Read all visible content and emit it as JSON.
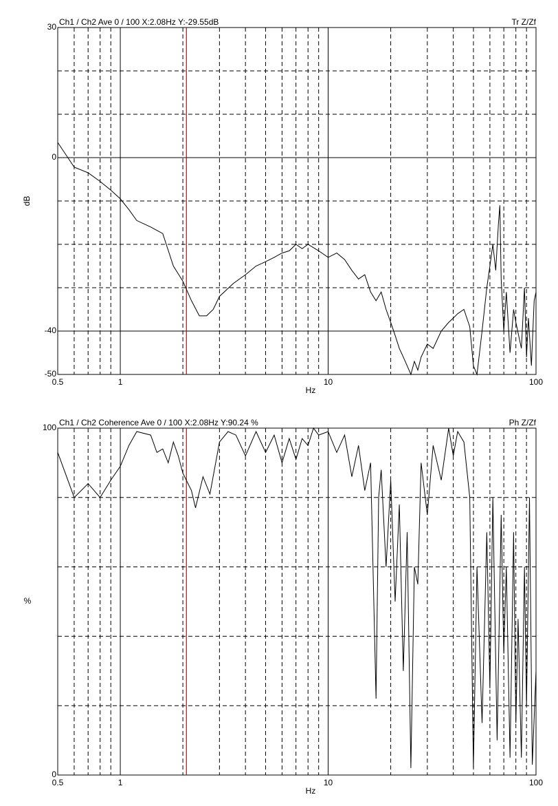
{
  "chart_data": [
    {
      "type": "line",
      "title": "Ch1 / Ch2  Ave 0 / 100  X:2.08Hz  Y:-29.55dB",
      "title_right": "Tr Z/Zf",
      "ylabel": "dB",
      "xlabel": "Hz",
      "log_x": true,
      "xlim": [
        0.5,
        100
      ],
      "xticks": [
        0.5,
        1,
        10,
        100
      ],
      "xminor": [
        0.6,
        0.7,
        0.8,
        0.9,
        2,
        3,
        4,
        5,
        6,
        7,
        8,
        9,
        20,
        30,
        40,
        50,
        60,
        70,
        80,
        90
      ],
      "ylim": [
        -50,
        30
      ],
      "yticks": [
        30,
        0,
        -40,
        -50
      ],
      "yminor": [
        20,
        10,
        -10,
        -20,
        -30
      ],
      "cursor_x": 2.08,
      "cursor_color": "#cc0000",
      "color": "#000000",
      "x": [
        0.5,
        0.6,
        0.7,
        0.8,
        0.9,
        1.0,
        1.1,
        1.2,
        1.4,
        1.6,
        1.8,
        2.0,
        2.2,
        2.4,
        2.6,
        2.8,
        3.0,
        3.5,
        4,
        4.5,
        5,
        5.5,
        6,
        6.5,
        7,
        7.5,
        8,
        9,
        10,
        11,
        12,
        13,
        14,
        15,
        16,
        17,
        18,
        19,
        20,
        21,
        22,
        23,
        24,
        25,
        26,
        27,
        28,
        30,
        32,
        35,
        38,
        40,
        42,
        45,
        48,
        50,
        52,
        55,
        58,
        60,
        62,
        64,
        66,
        67,
        68,
        70,
        72,
        75,
        78,
        80,
        85,
        88,
        90,
        92,
        95,
        98,
        100
      ],
      "values": [
        3.5,
        -2.2,
        -3.5,
        -5.5,
        -7.5,
        -9.5,
        -12,
        -14.5,
        -16,
        -17.5,
        -25,
        -28.5,
        -33,
        -36.5,
        -36.5,
        -35,
        -32,
        -29,
        -27,
        -25,
        -24,
        -23,
        -22,
        -21.5,
        -20,
        -21,
        -20,
        -21.5,
        -23,
        -22,
        -23.5,
        -26,
        -28,
        -27,
        -31,
        -33,
        -31,
        -35,
        -38,
        -41,
        -44,
        -46,
        -48,
        -50,
        -47,
        -49,
        -46,
        -43,
        -44,
        -40,
        -38,
        -37,
        -36,
        -35,
        -39,
        -48,
        -50,
        -40,
        -30,
        -25,
        -20,
        -26,
        -15,
        -11,
        -28,
        -40,
        -31,
        -45,
        -35,
        -38,
        -44,
        -30,
        -46,
        -37,
        -48,
        -33,
        -31
      ]
    },
    {
      "type": "line",
      "title": "Ch1 / Ch2  Coherence Ave 0 / 100  X:2.08Hz  Y:90.24 %",
      "title_right": "Ph Z/Zf",
      "ylabel": "%",
      "xlabel": "Hz",
      "log_x": true,
      "xlim": [
        0.5,
        100
      ],
      "xticks": [
        0.5,
        1,
        10,
        100
      ],
      "xminor": [
        0.6,
        0.7,
        0.8,
        0.9,
        2,
        3,
        4,
        5,
        6,
        7,
        8,
        9,
        20,
        30,
        40,
        50,
        60,
        70,
        80,
        90
      ],
      "ylim": [
        0,
        100
      ],
      "yticks": [
        100,
        0
      ],
      "yminor": [
        80,
        60,
        40,
        20
      ],
      "cursor_x": 2.08,
      "cursor_color": "#cc0000",
      "color": "#000000",
      "x": [
        0.5,
        0.6,
        0.7,
        0.8,
        0.9,
        1.0,
        1.1,
        1.2,
        1.4,
        1.5,
        1.6,
        1.7,
        1.8,
        1.9,
        2.0,
        2.2,
        2.3,
        2.5,
        2.7,
        3.0,
        3.3,
        3.6,
        4,
        4.5,
        5,
        5.5,
        6,
        6.5,
        7,
        7.5,
        8,
        8.5,
        9,
        10,
        11,
        12,
        13,
        14,
        15,
        16,
        17,
        17.5,
        18,
        19,
        20,
        21,
        22,
        23,
        24,
        25,
        26,
        27,
        28,
        30,
        32,
        35,
        38,
        40,
        42,
        45,
        48,
        50,
        52,
        55,
        58,
        60,
        62,
        65,
        68,
        70,
        72,
        75,
        78,
        80,
        82,
        85,
        88,
        90,
        93,
        96,
        100
      ],
      "values": [
        93,
        80,
        84,
        80,
        85,
        89,
        95,
        99,
        98,
        93,
        94,
        90,
        96,
        92,
        87,
        82,
        77,
        86,
        81,
        96,
        99,
        98,
        92,
        99,
        93,
        98,
        90,
        97,
        91,
        97,
        95,
        100,
        98,
        99,
        93,
        98,
        86,
        95,
        82,
        90,
        22,
        80,
        88,
        60,
        85,
        50,
        78,
        30,
        70,
        2,
        60,
        55,
        90,
        75,
        95,
        85,
        100,
        92,
        99,
        96,
        80,
        2,
        60,
        15,
        70,
        25,
        80,
        10,
        75,
        35,
        60,
        5,
        70,
        15,
        45,
        5,
        60,
        20,
        80,
        3,
        30
      ]
    }
  ]
}
